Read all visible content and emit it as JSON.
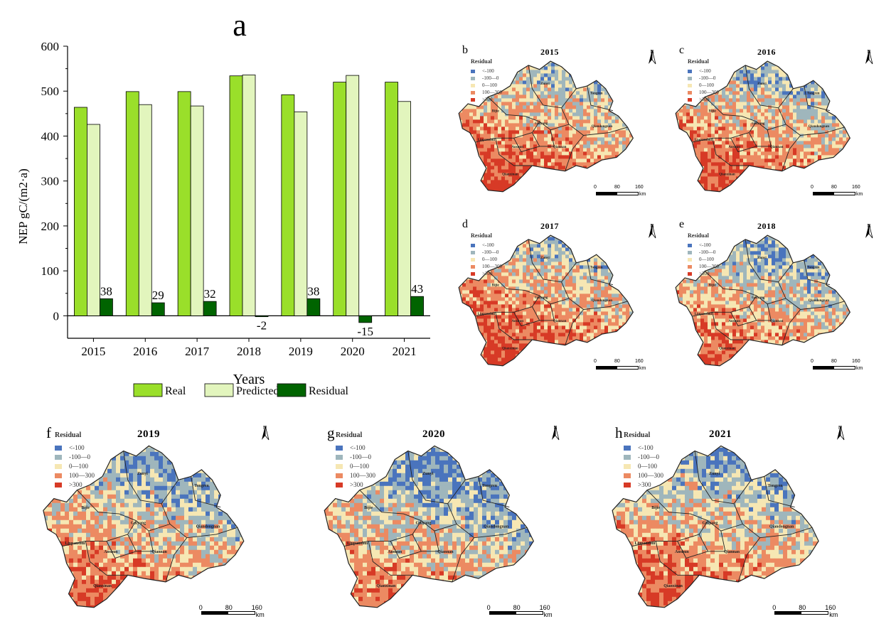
{
  "chart_data": {
    "type": "bar",
    "panel_label": "a",
    "categories": [
      "2015",
      "2016",
      "2017",
      "2018",
      "2019",
      "2020",
      "2021"
    ],
    "series": [
      {
        "name": "Real",
        "color": "#9adf2a",
        "values": [
          464,
          499,
          499,
          534,
          492,
          520,
          520
        ]
      },
      {
        "name": "Predicted",
        "color": "#e2f5bd",
        "values": [
          426,
          470,
          467,
          536,
          454,
          535,
          477
        ]
      },
      {
        "name": "Residual",
        "color": "#006400",
        "values": [
          38,
          29,
          32,
          -2,
          38,
          -15,
          43
        ]
      }
    ],
    "residual_labels": [
      "38",
      "29",
      "32",
      "-2",
      "38",
      "-15",
      "43"
    ],
    "xlabel": "Years",
    "ylabel": "NEP  gC/(m2·a)",
    "ylim": [
      -50,
      600
    ],
    "yticks": [
      "0",
      "100",
      "200",
      "300",
      "400",
      "500",
      "600"
    ],
    "yticks_values": [
      0,
      100,
      200,
      300,
      400,
      500,
      600
    ]
  },
  "maps": [
    {
      "label": "b",
      "year": "2015"
    },
    {
      "label": "c",
      "year": "2016"
    },
    {
      "label": "d",
      "year": "2017"
    },
    {
      "label": "e",
      "year": "2018"
    },
    {
      "label": "f",
      "year": "2019"
    },
    {
      "label": "g",
      "year": "2020"
    },
    {
      "label": "h",
      "year": "2021"
    }
  ],
  "map_legend": {
    "title": "Residual",
    "items": [
      {
        "label": "<-100",
        "color": "#4a74bd"
      },
      {
        "label": "-100—0",
        "color": "#9fb6bc"
      },
      {
        "label": "0—100",
        "color": "#f6e7b3"
      },
      {
        "label": "100—300",
        "color": "#ec8a62"
      },
      {
        "label": ">300",
        "color": "#d73a26"
      }
    ]
  },
  "map_regions": [
    "Zunyi",
    "Tongren",
    "Bijie",
    "Guiyang",
    "Qiandongnan",
    "Liupanshui",
    "Anshun",
    "Qiannan",
    "Qianxinan"
  ],
  "north_label": "N",
  "scale_labels": [
    "0",
    "80",
    "160"
  ],
  "scale_unit": "km"
}
